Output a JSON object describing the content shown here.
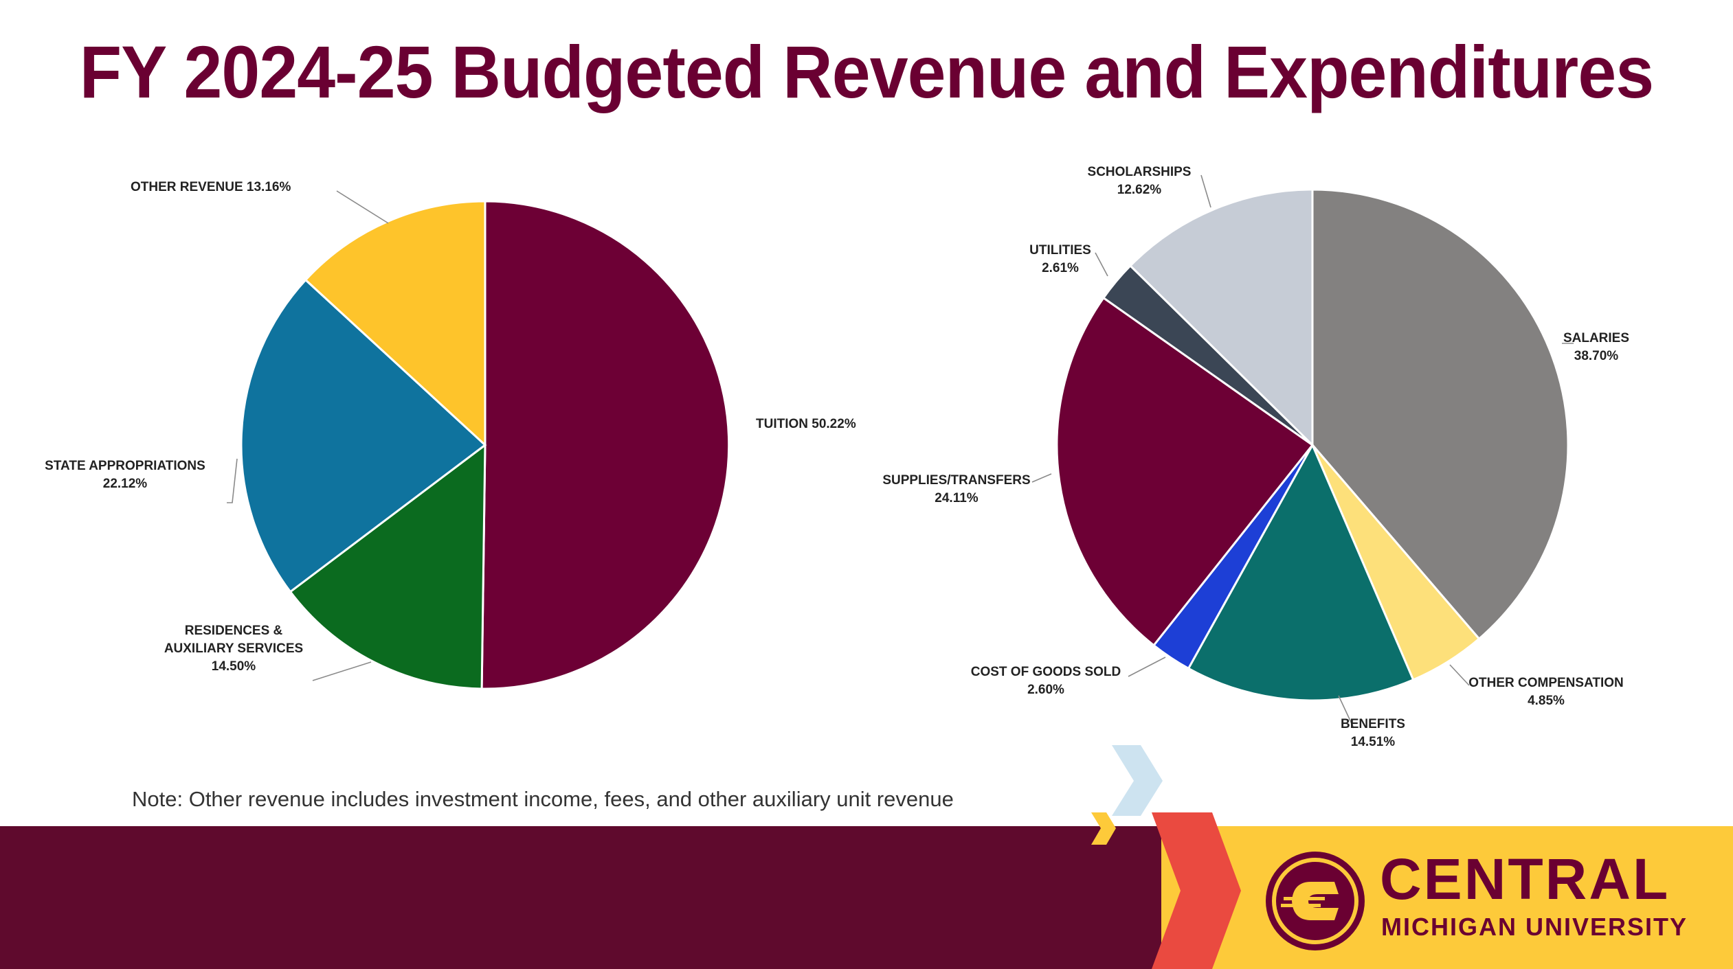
{
  "title": "FY 2024-25 Budgeted Revenue and Expenditures",
  "note": "Note: Other revenue includes investment income, fees, and other auxiliary unit revenue",
  "brand": {
    "name": "CENTRAL",
    "subtitle": "MICHIGAN UNIVERSITY"
  },
  "chart_data": [
    {
      "type": "pie",
      "title": "",
      "slices": [
        {
          "name": "TUITION",
          "value": 50.22,
          "value_label": "50.22%",
          "color": "#6d0035"
        },
        {
          "name": "RESIDENCES & AUXILIARY SERVICES",
          "name_lines": [
            "RESIDENCES &",
            "AUXILIARY SERVICES"
          ],
          "value": 14.5,
          "value_label": "14.50%",
          "color": "#0b6b1f"
        },
        {
          "name": "STATE APPROPRIATIONS",
          "value": 22.12,
          "value_label": "22.12%",
          "color": "#0f739e"
        },
        {
          "name": "OTHER REVENUE",
          "value": 13.16,
          "value_label": "13.16%",
          "color": "#fec42b"
        }
      ],
      "start_angle_deg": 0,
      "direction": "clockwise"
    },
    {
      "type": "pie",
      "title": "",
      "slices": [
        {
          "name": "SALARIES",
          "value": 38.7,
          "value_label": "38.70%",
          "color": "#838180"
        },
        {
          "name": "OTHER COMPENSATION",
          "value": 4.85,
          "value_label": "4.85%",
          "color": "#fde07a"
        },
        {
          "name": "BENEFITS",
          "value": 14.51,
          "value_label": "14.51%",
          "color": "#0b6f6b"
        },
        {
          "name": "COST OF GOODS SOLD",
          "value": 2.6,
          "value_label": "2.60%",
          "color": "#1d3fd6"
        },
        {
          "name": "SUPPLIES/TRANSFERS",
          "value": 24.11,
          "value_label": "24.11%",
          "color": "#6d0035"
        },
        {
          "name": "UTILITIES",
          "value": 2.61,
          "value_label": "2.61%",
          "color": "#3b4655"
        },
        {
          "name": "SCHOLARSHIPS",
          "value": 12.62,
          "value_label": "12.62%",
          "color": "#c6ccd6"
        }
      ],
      "start_angle_deg": 0,
      "direction": "clockwise"
    }
  ],
  "colors": {
    "title": "#6a0032",
    "footer_maroon": "#5f0a2d",
    "footer_gold": "#fdca3a",
    "chevron_light_blue": "#cde3f0",
    "chevron_red": "#ea4a40",
    "chevron_gold": "#fdca3a"
  }
}
